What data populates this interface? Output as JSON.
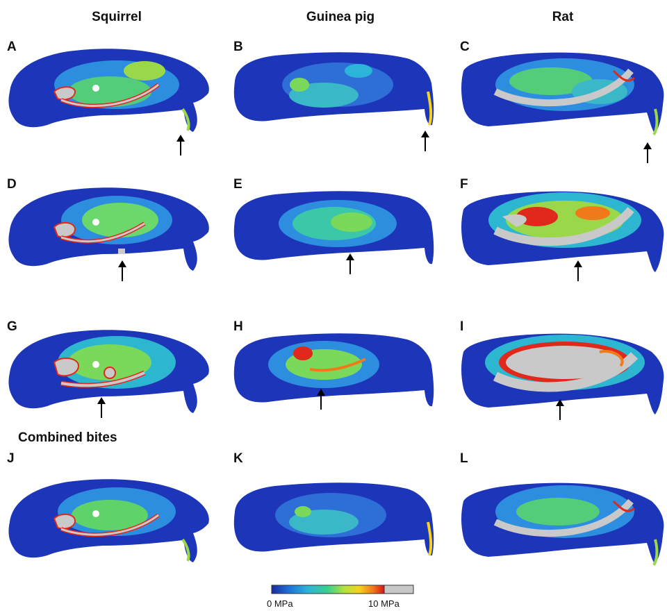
{
  "columns": [
    {
      "title": "Squirrel"
    },
    {
      "title": "Guinea pig"
    },
    {
      "title": "Rat"
    }
  ],
  "section_title": "Combined bites",
  "panels": [
    {
      "letter": "A",
      "species": "squirrel",
      "arrow": true
    },
    {
      "letter": "B",
      "species": "guinea-pig",
      "arrow": true
    },
    {
      "letter": "C",
      "species": "rat",
      "arrow": true
    },
    {
      "letter": "D",
      "species": "squirrel",
      "arrow": true
    },
    {
      "letter": "E",
      "species": "guinea-pig",
      "arrow": true
    },
    {
      "letter": "F",
      "species": "rat",
      "arrow": true
    },
    {
      "letter": "G",
      "species": "squirrel",
      "arrow": true
    },
    {
      "letter": "H",
      "species": "guinea-pig",
      "arrow": true
    },
    {
      "letter": "I",
      "species": "rat",
      "arrow": true
    },
    {
      "letter": "J",
      "species": "squirrel",
      "arrow": false
    },
    {
      "letter": "K",
      "species": "guinea-pig",
      "arrow": false
    },
    {
      "letter": "L",
      "species": "rat",
      "arrow": false
    }
  ],
  "legend": {
    "min_label": "0 MPa",
    "max_label": "10 MPa",
    "colors": [
      "#1a2a9c",
      "#1f6fd6",
      "#2bb5d8",
      "#3ccf8a",
      "#b8e23a",
      "#f5d21c",
      "#f07a1a",
      "#d8141c",
      "#c8c8c8"
    ]
  },
  "colors": {
    "skull_base": "#1d35b8",
    "stress_mid": "#2db6d0",
    "stress_green": "#5fd36a",
    "stress_high": "#e0281c",
    "bone_gray": "#c9c9c9"
  }
}
